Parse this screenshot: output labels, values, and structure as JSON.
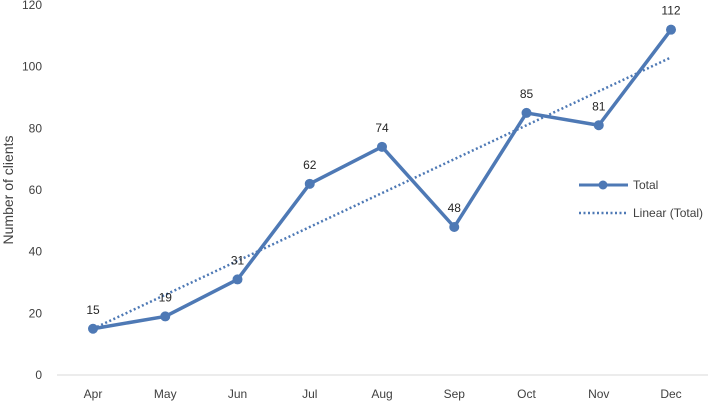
{
  "chart_data": {
    "type": "line",
    "categories": [
      "Apr",
      "May",
      "Jun",
      "Jul",
      "Aug",
      "Sep",
      "Oct",
      "Nov",
      "Dec"
    ],
    "series": [
      {
        "name": "Total",
        "values": [
          15,
          19,
          31,
          62,
          74,
          48,
          85,
          81,
          112
        ],
        "color": "#4e79b5",
        "style": "solid-markers"
      },
      {
        "name": "Linear (Total)",
        "trendline": true,
        "start": 15,
        "end": 103,
        "color": "#4e79b5",
        "style": "dotted"
      }
    ],
    "data_labels": [
      "15",
      "19",
      "31",
      "62",
      "74",
      "48",
      "85",
      "81",
      "112"
    ],
    "ylabel": "Number of clients",
    "xlabel": "",
    "ylim": [
      0,
      120
    ],
    "yticks": [
      "0",
      "20",
      "40",
      "60",
      "80",
      "100",
      "120"
    ],
    "grid": false,
    "legend": {
      "position": "right",
      "entries": [
        "Total",
        "Linear (Total)"
      ]
    }
  }
}
